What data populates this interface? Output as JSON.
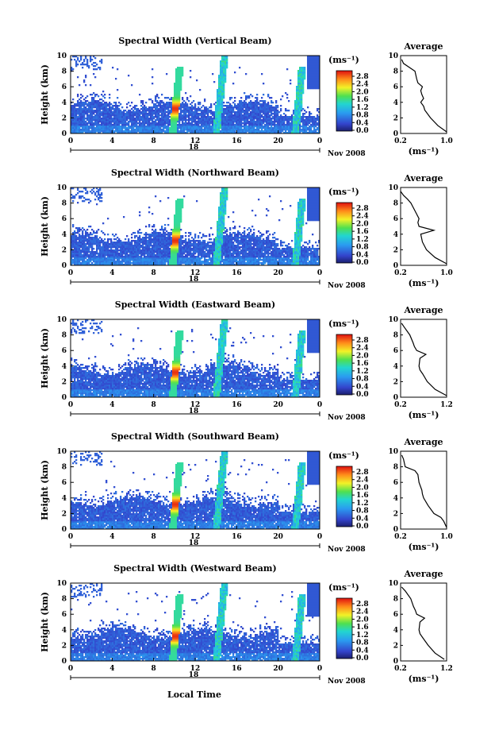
{
  "figure": {
    "x_axis_label": "Local Time",
    "date_label": "Nov 2008",
    "day_label": "18",
    "height_label": "Height (km)",
    "average_title": "Average",
    "colorbar_unit": "(ms⁻¹)",
    "avg_unit": "(ms⁻¹)"
  },
  "chart_data": [
    {
      "type": "heatmap",
      "title": "Spectral Width (Vertical Beam)",
      "xlabel": "Local Time",
      "ylabel": "Height (km)",
      "xlim": [
        0,
        24
      ],
      "ylim": [
        0,
        10
      ],
      "x_ticks": [
        "0",
        "4",
        "8",
        "12",
        "16",
        "20",
        "0"
      ],
      "y_ticks": [
        "0",
        "2",
        "4",
        "6",
        "8",
        "10"
      ],
      "colorbar": {
        "ticks": [
          "0.0",
          "0.4",
          "0.8",
          "1.2",
          "1.6",
          "2.0",
          "2.4",
          "2.8"
        ],
        "range": [
          0,
          2.8
        ]
      },
      "average_profile": {
        "xlim": [
          0.2,
          1.0
        ],
        "x_ticks": [
          "0.2",
          "1.0"
        ],
        "height": [
          0.2,
          1,
          2,
          3,
          3.5,
          4,
          4.5,
          5,
          5.5,
          6,
          6.5,
          7,
          8,
          8.5,
          9,
          9.5
        ],
        "value": [
          1.0,
          0.85,
          0.72,
          0.62,
          0.6,
          0.55,
          0.6,
          0.57,
          0.55,
          0.58,
          0.5,
          0.48,
          0.45,
          0.35,
          0.25,
          0.22
        ]
      }
    },
    {
      "type": "heatmap",
      "title": "Spectral Width (Northward Beam)",
      "xlabel": "Local Time",
      "ylabel": "Height (km)",
      "xlim": [
        0,
        24
      ],
      "ylim": [
        0,
        10
      ],
      "x_ticks": [
        "0",
        "4",
        "8",
        "12",
        "16",
        "20",
        "0"
      ],
      "y_ticks": [
        "0",
        "2",
        "4",
        "6",
        "8",
        "10"
      ],
      "colorbar": {
        "ticks": [
          "0.0",
          "0.4",
          "0.8",
          "1.2",
          "1.6",
          "2.0",
          "2.4",
          "2.8"
        ],
        "range": [
          0,
          2.8
        ]
      },
      "average_profile": {
        "xlim": [
          0.2,
          1.0
        ],
        "x_ticks": [
          "0.2",
          "1.0"
        ],
        "height": [
          0.2,
          1,
          2,
          3,
          4,
          4.5,
          5,
          5.5,
          6,
          7,
          8,
          8.5,
          9,
          9.5
        ],
        "value": [
          1.0,
          0.8,
          0.65,
          0.58,
          0.55,
          0.78,
          0.52,
          0.5,
          0.52,
          0.45,
          0.38,
          0.32,
          0.25,
          0.2
        ]
      }
    },
    {
      "type": "heatmap",
      "title": "Spectral Width (Eastward Beam)",
      "xlabel": "Local Time",
      "ylabel": "Height (km)",
      "xlim": [
        0,
        24
      ],
      "ylim": [
        0,
        10
      ],
      "x_ticks": [
        "0",
        "4",
        "8",
        "12",
        "16",
        "20",
        "0"
      ],
      "y_ticks": [
        "0",
        "2",
        "4",
        "6",
        "8",
        "10"
      ],
      "colorbar": {
        "ticks": [
          "0.0",
          "0.4",
          "0.8",
          "1.2",
          "1.6",
          "2.0",
          "2.4",
          "2.8"
        ],
        "range": [
          0,
          2.8
        ]
      },
      "average_profile": {
        "xlim": [
          0.2,
          1.2
        ],
        "x_ticks": [
          "0.2",
          "1.2"
        ],
        "height": [
          0.2,
          1,
          2,
          3,
          3.5,
          4,
          5,
          5.5,
          6,
          6.5,
          7,
          8,
          9,
          9.5
        ],
        "value": [
          1.2,
          0.95,
          0.78,
          0.68,
          0.62,
          0.6,
          0.62,
          0.75,
          0.55,
          0.5,
          0.47,
          0.4,
          0.28,
          0.22
        ]
      }
    },
    {
      "type": "heatmap",
      "title": "Spectral Width (Southward Beam)",
      "xlabel": "Local Time",
      "ylabel": "Height (km)",
      "xlim": [
        0,
        24
      ],
      "ylim": [
        0,
        10
      ],
      "x_ticks": [
        "0",
        "4",
        "8",
        "12",
        "16",
        "20",
        "0"
      ],
      "y_ticks": [
        "0",
        "2",
        "4",
        "6",
        "8",
        "10"
      ],
      "colorbar": {
        "ticks": [
          "0.0",
          "0.4",
          "0.8",
          "1.2",
          "1.6",
          "2.0",
          "2.4",
          "2.8"
        ],
        "range": [
          0,
          2.8
        ]
      },
      "average_profile": {
        "xlim": [
          0.2,
          1.0
        ],
        "x_ticks": [
          "0.2",
          "1.0"
        ],
        "height": [
          0.2,
          1,
          1.5,
          2,
          3,
          4,
          4.5,
          5,
          6,
          7,
          7.5,
          8,
          9,
          9.5
        ],
        "value": [
          1.0,
          0.95,
          0.9,
          0.78,
          0.68,
          0.6,
          0.58,
          0.57,
          0.52,
          0.5,
          0.45,
          0.28,
          0.25,
          0.22
        ]
      }
    },
    {
      "type": "heatmap",
      "title": "Spectral Width (Westward Beam)",
      "xlabel": "Local Time",
      "ylabel": "Height (km)",
      "xlim": [
        0,
        24
      ],
      "ylim": [
        0,
        10
      ],
      "x_ticks": [
        "0",
        "4",
        "8",
        "12",
        "16",
        "20",
        "0"
      ],
      "y_ticks": [
        "0",
        "2",
        "4",
        "6",
        "8",
        "10"
      ],
      "colorbar": {
        "ticks": [
          "0.0",
          "0.4",
          "0.8",
          "1.2",
          "1.6",
          "2.0",
          "2.4",
          "2.8"
        ],
        "range": [
          0,
          2.8
        ]
      },
      "average_profile": {
        "xlim": [
          0.2,
          1.2
        ],
        "x_ticks": [
          "0.2",
          "1.2"
        ],
        "height": [
          0.2,
          1,
          2,
          3,
          3.5,
          4,
          5,
          5.5,
          6,
          6.5,
          7,
          8,
          9,
          9.5
        ],
        "value": [
          1.15,
          0.95,
          0.8,
          0.68,
          0.62,
          0.6,
          0.62,
          0.72,
          0.55,
          0.52,
          0.48,
          0.42,
          0.3,
          0.22
        ]
      }
    }
  ]
}
